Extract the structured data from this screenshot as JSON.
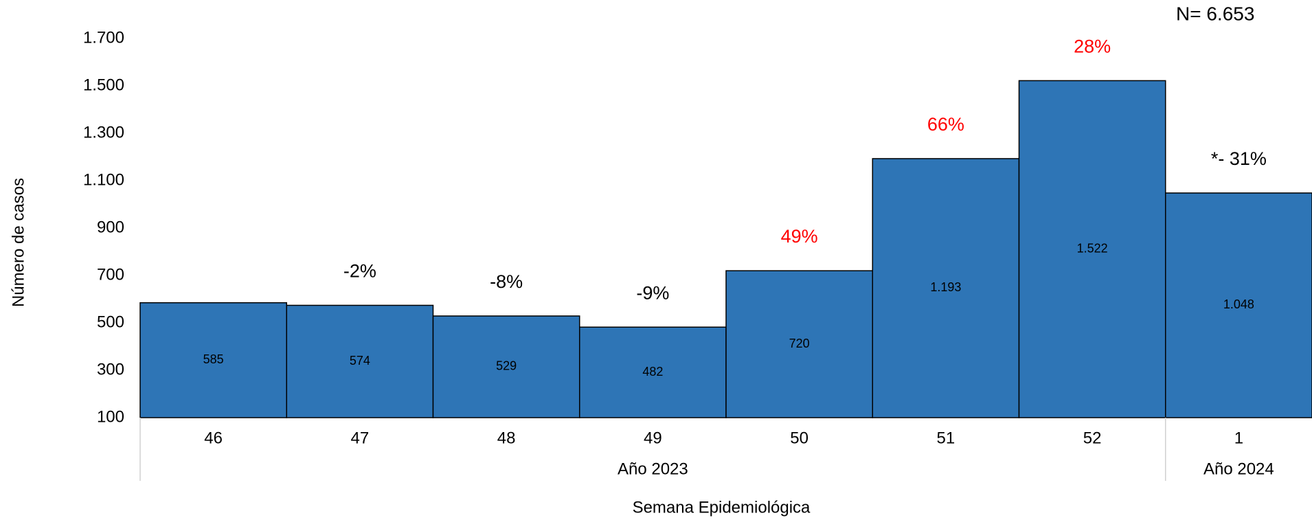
{
  "chart_data": {
    "type": "bar",
    "annotation": "N= 6.653",
    "x_label": "Semana Epidemiológica",
    "y_label": "Número de casos",
    "categories": [
      "46",
      "47",
      "48",
      "49",
      "50",
      "51",
      "52",
      "1"
    ],
    "group_labels": [
      "Año 2023",
      "Año 2023",
      "Año 2023",
      "Año 2023",
      "Año 2023",
      "Año 2023",
      "Año 2023",
      "Año 2024"
    ],
    "values": [
      585,
      574,
      529,
      482,
      720,
      1193,
      1522,
      1048
    ],
    "value_labels": [
      "585",
      "574",
      "529",
      "482",
      "720",
      "1.193",
      "1.522",
      "1.048"
    ],
    "change_labels": [
      null,
      "-2%",
      "-8%",
      "-9%",
      "49%",
      "66%",
      "28%",
      "*- 31%"
    ],
    "change_label_colors": [
      null,
      "#000000",
      "#000000",
      "#000000",
      "#ff0000",
      "#ff0000",
      "#ff0000",
      "#000000"
    ],
    "color": "#2e75b6",
    "ylim": [
      100,
      1700
    ],
    "yticks": [
      {
        "value": 100,
        "label": "100"
      },
      {
        "value": 300,
        "label": "300"
      },
      {
        "value": 500,
        "label": "500"
      },
      {
        "value": 700,
        "label": "700"
      },
      {
        "value": 900,
        "label": "900"
      },
      {
        "value": 1100,
        "label": "1.100"
      },
      {
        "value": 1300,
        "label": "1.300"
      },
      {
        "value": 1500,
        "label": "1.500"
      },
      {
        "value": 1700,
        "label": "1.700"
      }
    ],
    "grid": false
  }
}
